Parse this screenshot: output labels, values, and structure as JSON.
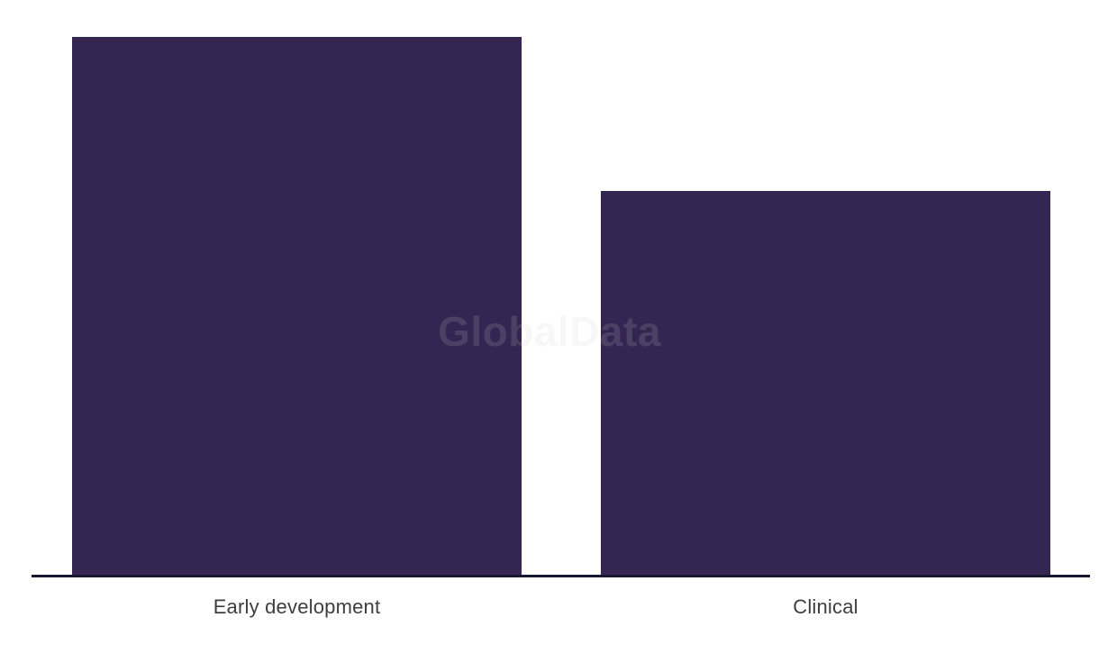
{
  "chart_data": {
    "type": "bar",
    "title": "",
    "xlabel": "",
    "ylabel": "",
    "categories": [
      "Early development",
      "Clinical"
    ],
    "values": [
      7,
      5
    ],
    "value_scale_note": "no y-axis or data labels visible; values estimated from relative bar heights (597px : 426px, ratio 1 : 0.714 = 7 : 5)",
    "ylim": [
      0,
      7.33
    ],
    "grid": false,
    "legend_position": "none",
    "bar_color": "#352552",
    "axis_line_color": "#161730",
    "category_label_color": "#3e3e3e",
    "background_color": "#ffffff",
    "watermark_text": "GlobalData",
    "watermark_color": "rgba(205,205,205,0.16)"
  }
}
